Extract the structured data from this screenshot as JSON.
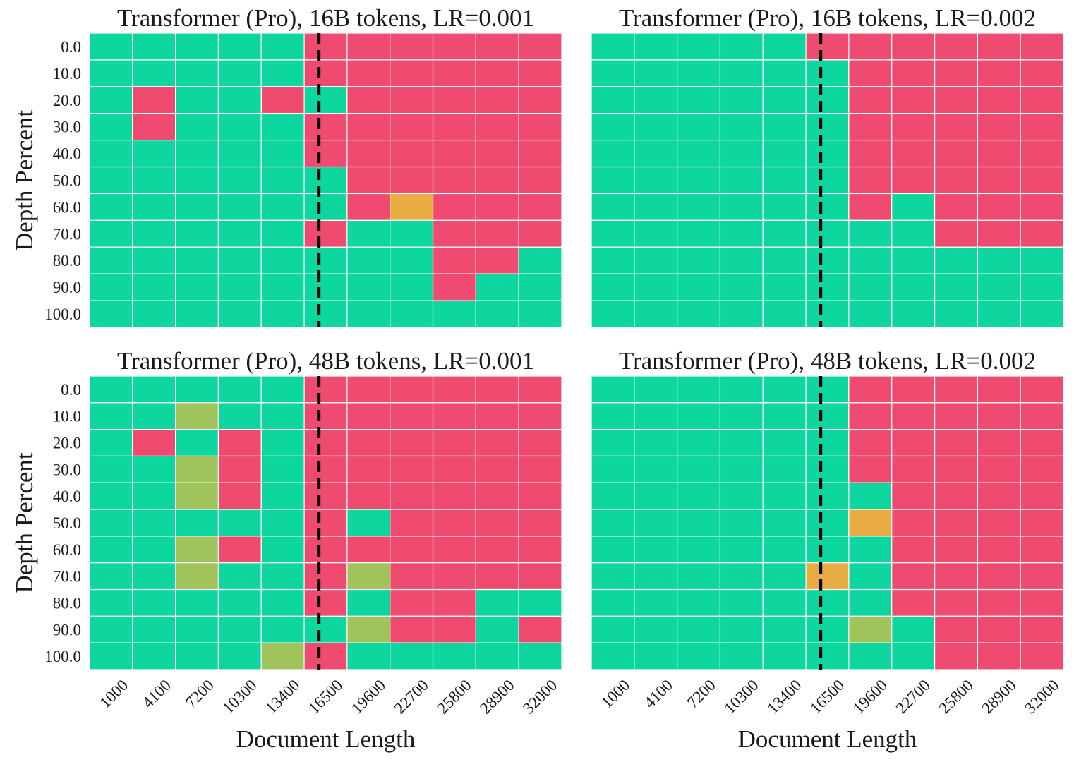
{
  "colors": {
    "correct": "#0dd69f",
    "partial_high": "#e9ac43",
    "partial_low": "#a0c35c",
    "wrong": "#ef4a6f",
    "grid": "#ffffff",
    "marker": "#000000"
  },
  "chart_data": [
    {
      "type": "heatmap",
      "title": "Transformer (Pro), 16B tokens, LR=0.001",
      "xlabel": "",
      "ylabel": "Depth Percent",
      "x": [
        "1000",
        "4100",
        "7200",
        "10300",
        "13400",
        "16500",
        "19600",
        "22700",
        "25800",
        "28900",
        "32000"
      ],
      "y": [
        "0.0",
        "10.0",
        "20.0",
        "30.0",
        "40.0",
        "50.0",
        "60.0",
        "70.0",
        "80.0",
        "90.0",
        "100.0"
      ],
      "show_x_ticks": false,
      "show_y_ticks": true,
      "context_marker": 16000,
      "scores": [
        [
          1,
          1,
          1,
          1,
          1,
          0,
          0,
          0,
          0,
          0,
          0
        ],
        [
          1,
          1,
          1,
          1,
          1,
          0,
          0,
          0,
          0,
          0,
          0
        ],
        [
          1,
          0,
          1,
          1,
          0,
          1,
          0,
          0,
          0,
          0,
          0
        ],
        [
          1,
          0,
          1,
          1,
          1,
          0,
          0,
          0,
          0,
          0,
          0
        ],
        [
          1,
          1,
          1,
          1,
          1,
          0,
          0,
          0,
          0,
          0,
          0
        ],
        [
          1,
          1,
          1,
          1,
          1,
          1,
          0,
          0,
          0,
          0,
          0
        ],
        [
          1,
          1,
          1,
          1,
          1,
          1,
          0,
          0.5,
          0,
          0,
          0
        ],
        [
          1,
          1,
          1,
          1,
          1,
          0,
          1,
          1,
          0,
          0,
          0
        ],
        [
          1,
          1,
          1,
          1,
          1,
          1,
          1,
          1,
          0,
          0,
          1
        ],
        [
          1,
          1,
          1,
          1,
          1,
          1,
          1,
          1,
          0,
          1,
          1
        ],
        [
          1,
          1,
          1,
          1,
          1,
          1,
          1,
          1,
          1,
          1,
          1
        ]
      ]
    },
    {
      "type": "heatmap",
      "title": "Transformer (Pro), 16B tokens, LR=0.002",
      "xlabel": "",
      "ylabel": "",
      "x": [
        "1000",
        "4100",
        "7200",
        "10300",
        "13400",
        "16500",
        "19600",
        "22700",
        "25800",
        "28900",
        "32000"
      ],
      "y": [
        "0.0",
        "10.0",
        "20.0",
        "30.0",
        "40.0",
        "50.0",
        "60.0",
        "70.0",
        "80.0",
        "90.0",
        "100.0"
      ],
      "show_x_ticks": false,
      "show_y_ticks": false,
      "context_marker": 16000,
      "scores": [
        [
          1,
          1,
          1,
          1,
          1,
          0,
          0,
          0,
          0,
          0,
          0
        ],
        [
          1,
          1,
          1,
          1,
          1,
          1,
          0,
          0,
          0,
          0,
          0
        ],
        [
          1,
          1,
          1,
          1,
          1,
          1,
          0,
          0,
          0,
          0,
          0
        ],
        [
          1,
          1,
          1,
          1,
          1,
          1,
          0,
          0,
          0,
          0,
          0
        ],
        [
          1,
          1,
          1,
          1,
          1,
          1,
          0,
          0,
          0,
          0,
          0
        ],
        [
          1,
          1,
          1,
          1,
          1,
          1,
          0,
          0,
          0,
          0,
          0
        ],
        [
          1,
          1,
          1,
          1,
          1,
          1,
          0,
          1,
          0,
          0,
          0
        ],
        [
          1,
          1,
          1,
          1,
          1,
          1,
          1,
          1,
          0,
          0,
          0
        ],
        [
          1,
          1,
          1,
          1,
          1,
          1,
          1,
          1,
          1,
          1,
          1
        ],
        [
          1,
          1,
          1,
          1,
          1,
          1,
          1,
          1,
          1,
          1,
          1
        ],
        [
          1,
          1,
          1,
          1,
          1,
          1,
          1,
          1,
          1,
          1,
          1
        ]
      ]
    },
    {
      "type": "heatmap",
      "title": "Transformer (Pro), 48B tokens, LR=0.001",
      "xlabel": "Document Length",
      "ylabel": "Depth Percent",
      "x": [
        "1000",
        "4100",
        "7200",
        "10300",
        "13400",
        "16500",
        "19600",
        "22700",
        "25800",
        "28900",
        "32000"
      ],
      "y": [
        "0.0",
        "10.0",
        "20.0",
        "30.0",
        "40.0",
        "50.0",
        "60.0",
        "70.0",
        "80.0",
        "90.0",
        "100.0"
      ],
      "show_x_ticks": true,
      "show_y_ticks": true,
      "context_marker": 16000,
      "scores": [
        [
          1,
          1,
          1,
          1,
          1,
          0,
          0,
          0,
          0,
          0,
          0
        ],
        [
          1,
          1,
          0.7,
          1,
          1,
          0,
          0,
          0,
          0,
          0,
          0
        ],
        [
          1,
          0,
          1,
          0,
          1,
          0,
          0,
          0,
          0,
          0,
          0
        ],
        [
          1,
          1,
          0.7,
          0,
          1,
          0,
          0,
          0,
          0,
          0,
          0
        ],
        [
          1,
          1,
          0.7,
          0,
          1,
          0,
          0,
          0,
          0,
          0,
          0
        ],
        [
          1,
          1,
          1,
          1,
          1,
          0,
          1,
          0,
          0,
          0,
          0
        ],
        [
          1,
          1,
          0.7,
          0,
          1,
          0,
          0,
          0,
          0,
          0,
          0
        ],
        [
          1,
          1,
          0.7,
          1,
          1,
          0,
          0.7,
          0,
          0,
          0,
          0
        ],
        [
          1,
          1,
          1,
          1,
          1,
          0,
          1,
          0,
          0,
          1,
          1
        ],
        [
          1,
          1,
          1,
          1,
          1,
          1,
          0.7,
          0,
          0,
          1,
          0
        ],
        [
          1,
          1,
          1,
          1,
          0.7,
          0,
          1,
          1,
          1,
          1,
          1
        ]
      ]
    },
    {
      "type": "heatmap",
      "title": "Transformer (Pro), 48B tokens, LR=0.002",
      "xlabel": "Document Length",
      "ylabel": "",
      "x": [
        "1000",
        "4100",
        "7200",
        "10300",
        "13400",
        "16500",
        "19600",
        "22700",
        "25800",
        "28900",
        "32000"
      ],
      "y": [
        "0.0",
        "10.0",
        "20.0",
        "30.0",
        "40.0",
        "50.0",
        "60.0",
        "70.0",
        "80.0",
        "90.0",
        "100.0"
      ],
      "show_x_ticks": true,
      "show_y_ticks": false,
      "context_marker": 16000,
      "scores": [
        [
          1,
          1,
          1,
          1,
          1,
          1,
          0,
          0,
          0,
          0,
          0
        ],
        [
          1,
          1,
          1,
          1,
          1,
          1,
          0,
          0,
          0,
          0,
          0
        ],
        [
          1,
          1,
          1,
          1,
          1,
          1,
          0,
          0,
          0,
          0,
          0
        ],
        [
          1,
          1,
          1,
          1,
          1,
          1,
          0,
          0,
          0,
          0,
          0
        ],
        [
          1,
          1,
          1,
          1,
          1,
          1,
          1,
          0,
          0,
          0,
          0
        ],
        [
          1,
          1,
          1,
          1,
          1,
          1,
          0.5,
          0,
          0,
          0,
          0
        ],
        [
          1,
          1,
          1,
          1,
          1,
          1,
          1,
          0,
          0,
          0,
          0
        ],
        [
          1,
          1,
          1,
          1,
          1,
          0.5,
          1,
          0,
          0,
          0,
          0
        ],
        [
          1,
          1,
          1,
          1,
          1,
          1,
          1,
          0,
          0,
          0,
          0
        ],
        [
          1,
          1,
          1,
          1,
          1,
          1,
          0.7,
          1,
          0,
          0,
          0
        ],
        [
          1,
          1,
          1,
          1,
          1,
          1,
          1,
          1,
          0,
          0,
          0
        ]
      ]
    }
  ]
}
